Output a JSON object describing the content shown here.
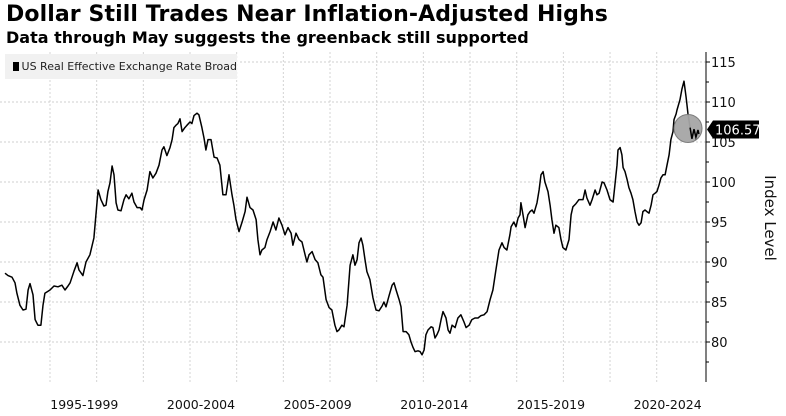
{
  "chart_data": {
    "type": "line",
    "title": "Dollar Still Trades Near Inflation-Adjusted Highs",
    "subtitle": "Data through May suggests the greenback still supported",
    "xlabel": "",
    "ylabel": "Index Level",
    "ylim": [
      75,
      116
    ],
    "y_ticks": [
      115,
      110,
      105,
      100,
      95,
      90,
      85,
      80
    ],
    "x_tick_labels": [
      {
        "label": "1995-1999",
        "center_year": 1997.5
      },
      {
        "label": "2000-2004",
        "center_year": 2002.5
      },
      {
        "label": "2005-2009",
        "center_year": 2007.5
      },
      {
        "label": "2010-2014",
        "center_year": 2012.5
      },
      {
        "label": "2015-2019",
        "center_year": 2017.5
      },
      {
        "label": "2020-2024",
        "center_year": 2022.5
      }
    ],
    "grid": true,
    "legend": {
      "position": "top-left",
      "entries": [
        "US Real Effective Exchange Rate Broad"
      ]
    },
    "last_value_label": "106.57",
    "last_value": 106.57,
    "colors": {
      "line": "#000000",
      "highlight_circle": "#a6a6a6",
      "label_bg": "#000000"
    },
    "series": [
      {
        "name": "US Real Effective Exchange Rate Broad",
        "points": [
          [
            1994.1,
            88.6
          ],
          [
            1994.23,
            88.3
          ],
          [
            1994.4,
            88.1
          ],
          [
            1994.53,
            87.4
          ],
          [
            1994.61,
            86.1
          ],
          [
            1994.74,
            84.6
          ],
          [
            1994.87,
            84.0
          ],
          [
            1995.0,
            84.1
          ],
          [
            1995.09,
            86.5
          ],
          [
            1995.17,
            87.3
          ],
          [
            1995.3,
            85.9
          ],
          [
            1995.39,
            82.8
          ],
          [
            1995.51,
            82.1
          ],
          [
            1995.64,
            82.1
          ],
          [
            1995.73,
            84.6
          ],
          [
            1995.81,
            86.1
          ],
          [
            1996.03,
            86.5
          ],
          [
            1996.2,
            87.0
          ],
          [
            1996.37,
            86.9
          ],
          [
            1996.54,
            87.1
          ],
          [
            1996.67,
            86.5
          ],
          [
            1996.8,
            87.0
          ],
          [
            1996.89,
            87.4
          ],
          [
            1997.06,
            88.9
          ],
          [
            1997.19,
            89.9
          ],
          [
            1997.27,
            89.0
          ],
          [
            1997.44,
            88.3
          ],
          [
            1997.57,
            90.0
          ],
          [
            1997.74,
            90.9
          ],
          [
            1997.91,
            93.0
          ],
          [
            1998.09,
            99.0
          ],
          [
            1998.21,
            97.8
          ],
          [
            1998.34,
            97.0
          ],
          [
            1998.43,
            97.1
          ],
          [
            1998.51,
            98.8
          ],
          [
            1998.6,
            99.9
          ],
          [
            1998.69,
            102.0
          ],
          [
            1998.77,
            100.9
          ],
          [
            1998.86,
            97.4
          ],
          [
            1998.94,
            96.5
          ],
          [
            1999.07,
            96.4
          ],
          [
            1999.2,
            97.8
          ],
          [
            1999.29,
            98.4
          ],
          [
            1999.41,
            97.9
          ],
          [
            1999.54,
            98.6
          ],
          [
            1999.63,
            97.5
          ],
          [
            1999.76,
            96.8
          ],
          [
            1999.89,
            96.8
          ],
          [
            1999.97,
            96.5
          ],
          [
            2000.06,
            97.8
          ],
          [
            2000.19,
            99.0
          ],
          [
            2000.31,
            101.3
          ],
          [
            2000.44,
            100.5
          ],
          [
            2000.57,
            101.1
          ],
          [
            2000.7,
            102.1
          ],
          [
            2000.83,
            104.0
          ],
          [
            2000.91,
            104.4
          ],
          [
            2001.04,
            103.3
          ],
          [
            2001.17,
            104.3
          ],
          [
            2001.26,
            105.3
          ],
          [
            2001.34,
            106.8
          ],
          [
            2001.43,
            107.1
          ],
          [
            2001.51,
            107.3
          ],
          [
            2001.6,
            107.9
          ],
          [
            2001.69,
            106.3
          ],
          [
            2001.81,
            106.8
          ],
          [
            2001.9,
            107.1
          ],
          [
            2002.03,
            107.5
          ],
          [
            2002.11,
            107.3
          ],
          [
            2002.2,
            108.3
          ],
          [
            2002.33,
            108.6
          ],
          [
            2002.41,
            108.4
          ],
          [
            2002.54,
            106.8
          ],
          [
            2002.63,
            105.5
          ],
          [
            2002.71,
            104.0
          ],
          [
            2002.8,
            105.3
          ],
          [
            2002.93,
            105.3
          ],
          [
            2003.06,
            103.1
          ],
          [
            2003.19,
            103.0
          ],
          [
            2003.31,
            102.1
          ],
          [
            2003.44,
            98.4
          ],
          [
            2003.57,
            98.4
          ],
          [
            2003.7,
            100.9
          ],
          [
            2003.83,
            98.4
          ],
          [
            2003.91,
            97.1
          ],
          [
            2004.0,
            95.3
          ],
          [
            2004.13,
            93.8
          ],
          [
            2004.26,
            95.0
          ],
          [
            2004.39,
            96.3
          ],
          [
            2004.47,
            98.1
          ],
          [
            2004.6,
            96.8
          ],
          [
            2004.73,
            96.5
          ],
          [
            2004.86,
            95.3
          ],
          [
            2004.94,
            92.8
          ],
          [
            2005.03,
            90.9
          ],
          [
            2005.11,
            91.5
          ],
          [
            2005.24,
            91.8
          ],
          [
            2005.33,
            92.8
          ],
          [
            2005.46,
            93.8
          ],
          [
            2005.59,
            95.0
          ],
          [
            2005.71,
            94.0
          ],
          [
            2005.84,
            95.5
          ],
          [
            2005.97,
            94.6
          ],
          [
            2006.1,
            93.4
          ],
          [
            2006.23,
            94.3
          ],
          [
            2006.36,
            93.6
          ],
          [
            2006.44,
            92.1
          ],
          [
            2006.57,
            93.6
          ],
          [
            2006.7,
            92.8
          ],
          [
            2006.83,
            92.5
          ],
          [
            2006.96,
            90.9
          ],
          [
            2007.04,
            90.0
          ],
          [
            2007.13,
            90.9
          ],
          [
            2007.26,
            91.3
          ],
          [
            2007.39,
            90.3
          ],
          [
            2007.51,
            89.9
          ],
          [
            2007.64,
            88.4
          ],
          [
            2007.73,
            88.1
          ],
          [
            2007.86,
            85.3
          ],
          [
            2007.99,
            84.3
          ],
          [
            2008.11,
            84.0
          ],
          [
            2008.24,
            82.1
          ],
          [
            2008.33,
            81.3
          ],
          [
            2008.41,
            81.5
          ],
          [
            2008.54,
            82.1
          ],
          [
            2008.63,
            81.9
          ],
          [
            2008.76,
            84.6
          ],
          [
            2008.89,
            89.6
          ],
          [
            2009.01,
            90.9
          ],
          [
            2009.1,
            89.6
          ],
          [
            2009.19,
            90.3
          ],
          [
            2009.27,
            92.4
          ],
          [
            2009.36,
            93.0
          ],
          [
            2009.44,
            92.1
          ],
          [
            2009.53,
            90.3
          ],
          [
            2009.61,
            88.8
          ],
          [
            2009.74,
            87.8
          ],
          [
            2009.87,
            85.5
          ],
          [
            2010.0,
            84.0
          ],
          [
            2010.13,
            83.9
          ],
          [
            2010.26,
            84.5
          ],
          [
            2010.34,
            85.0
          ],
          [
            2010.43,
            84.4
          ],
          [
            2010.56,
            85.8
          ],
          [
            2010.69,
            87.1
          ],
          [
            2010.77,
            87.4
          ],
          [
            2010.86,
            86.5
          ],
          [
            2010.99,
            85.3
          ],
          [
            2011.07,
            84.4
          ],
          [
            2011.16,
            81.3
          ],
          [
            2011.29,
            81.3
          ],
          [
            2011.41,
            80.9
          ],
          [
            2011.5,
            80.0
          ],
          [
            2011.59,
            79.3
          ],
          [
            2011.67,
            78.8
          ],
          [
            2011.8,
            78.9
          ],
          [
            2011.89,
            78.8
          ],
          [
            2011.97,
            78.4
          ],
          [
            2012.06,
            79.0
          ],
          [
            2012.14,
            80.9
          ],
          [
            2012.23,
            81.5
          ],
          [
            2012.36,
            81.9
          ],
          [
            2012.44,
            81.8
          ],
          [
            2012.53,
            80.5
          ],
          [
            2012.61,
            80.9
          ],
          [
            2012.7,
            81.5
          ],
          [
            2012.79,
            82.8
          ],
          [
            2012.87,
            83.8
          ],
          [
            2013.0,
            83.0
          ],
          [
            2013.09,
            81.5
          ],
          [
            2013.17,
            81.1
          ],
          [
            2013.26,
            82.1
          ],
          [
            2013.39,
            81.8
          ],
          [
            2013.51,
            83.0
          ],
          [
            2013.64,
            83.4
          ],
          [
            2013.77,
            82.5
          ],
          [
            2013.86,
            81.8
          ],
          [
            2013.99,
            82.1
          ],
          [
            2014.11,
            82.8
          ],
          [
            2014.24,
            83.0
          ],
          [
            2014.37,
            83.0
          ],
          [
            2014.5,
            83.3
          ],
          [
            2014.63,
            83.4
          ],
          [
            2014.76,
            83.8
          ],
          [
            2014.89,
            85.3
          ],
          [
            2015.01,
            86.5
          ],
          [
            2015.14,
            89.0
          ],
          [
            2015.27,
            91.5
          ],
          [
            2015.4,
            92.4
          ],
          [
            2015.49,
            91.8
          ],
          [
            2015.61,
            91.5
          ],
          [
            2015.74,
            93.4
          ],
          [
            2015.79,
            94.4
          ],
          [
            2015.91,
            95.0
          ],
          [
            2016.0,
            94.4
          ],
          [
            2016.09,
            95.5
          ],
          [
            2016.17,
            95.9
          ],
          [
            2016.21,
            97.4
          ],
          [
            2016.3,
            95.9
          ],
          [
            2016.39,
            94.3
          ],
          [
            2016.51,
            95.9
          ],
          [
            2016.6,
            96.3
          ],
          [
            2016.69,
            96.5
          ],
          [
            2016.77,
            96.1
          ],
          [
            2016.9,
            97.4
          ],
          [
            2016.99,
            99.0
          ],
          [
            2017.07,
            100.9
          ],
          [
            2017.16,
            101.3
          ],
          [
            2017.24,
            100.0
          ],
          [
            2017.37,
            98.8
          ],
          [
            2017.46,
            97.1
          ],
          [
            2017.54,
            95.3
          ],
          [
            2017.63,
            93.6
          ],
          [
            2017.71,
            94.6
          ],
          [
            2017.84,
            94.3
          ],
          [
            2017.93,
            92.8
          ],
          [
            2018.01,
            91.8
          ],
          [
            2018.14,
            91.5
          ],
          [
            2018.27,
            92.8
          ],
          [
            2018.36,
            95.9
          ],
          [
            2018.44,
            96.9
          ],
          [
            2018.57,
            97.3
          ],
          [
            2018.7,
            97.8
          ],
          [
            2018.87,
            97.8
          ],
          [
            2018.96,
            99.0
          ],
          [
            2019.04,
            98.0
          ],
          [
            2019.17,
            97.1
          ],
          [
            2019.26,
            97.8
          ],
          [
            2019.39,
            99.0
          ],
          [
            2019.47,
            98.4
          ],
          [
            2019.56,
            98.6
          ],
          [
            2019.69,
            100.0
          ],
          [
            2019.77,
            99.9
          ],
          [
            2019.9,
            99.0
          ],
          [
            2020.03,
            97.8
          ],
          [
            2020.16,
            97.5
          ],
          [
            2020.24,
            99.6
          ],
          [
            2020.33,
            102.1
          ],
          [
            2020.37,
            104.0
          ],
          [
            2020.46,
            104.3
          ],
          [
            2020.54,
            103.4
          ],
          [
            2020.59,
            101.8
          ],
          [
            2020.67,
            101.3
          ],
          [
            2020.76,
            100.3
          ],
          [
            2020.84,
            99.3
          ],
          [
            2020.93,
            98.6
          ],
          [
            2021.01,
            97.8
          ],
          [
            2021.1,
            96.3
          ],
          [
            2021.19,
            95.0
          ],
          [
            2021.27,
            94.6
          ],
          [
            2021.36,
            94.9
          ],
          [
            2021.44,
            96.3
          ],
          [
            2021.53,
            96.5
          ],
          [
            2021.61,
            96.3
          ],
          [
            2021.7,
            96.1
          ],
          [
            2021.79,
            97.1
          ],
          [
            2021.87,
            98.4
          ],
          [
            2021.96,
            98.6
          ],
          [
            2022.04,
            98.8
          ],
          [
            2022.13,
            99.6
          ],
          [
            2022.21,
            100.5
          ],
          [
            2022.3,
            100.9
          ],
          [
            2022.39,
            100.9
          ],
          [
            2022.47,
            102.1
          ],
          [
            2022.56,
            103.4
          ],
          [
            2022.64,
            105.3
          ],
          [
            2022.73,
            106.3
          ],
          [
            2022.77,
            107.8
          ],
          [
            2022.86,
            108.5
          ],
          [
            2022.9,
            109.0
          ],
          [
            2023.03,
            110.3
          ],
          [
            2023.11,
            111.6
          ],
          [
            2023.2,
            112.6
          ],
          [
            2023.29,
            110.6
          ],
          [
            2023.37,
            108.5
          ],
          [
            2023.46,
            106.8
          ],
          [
            2023.54,
            105.4
          ],
          [
            2023.63,
            106.6
          ],
          [
            2023.71,
            105.6
          ],
          [
            2023.8,
            106.5
          ],
          [
            2023.84,
            106.0
          ]
        ]
      }
    ]
  }
}
